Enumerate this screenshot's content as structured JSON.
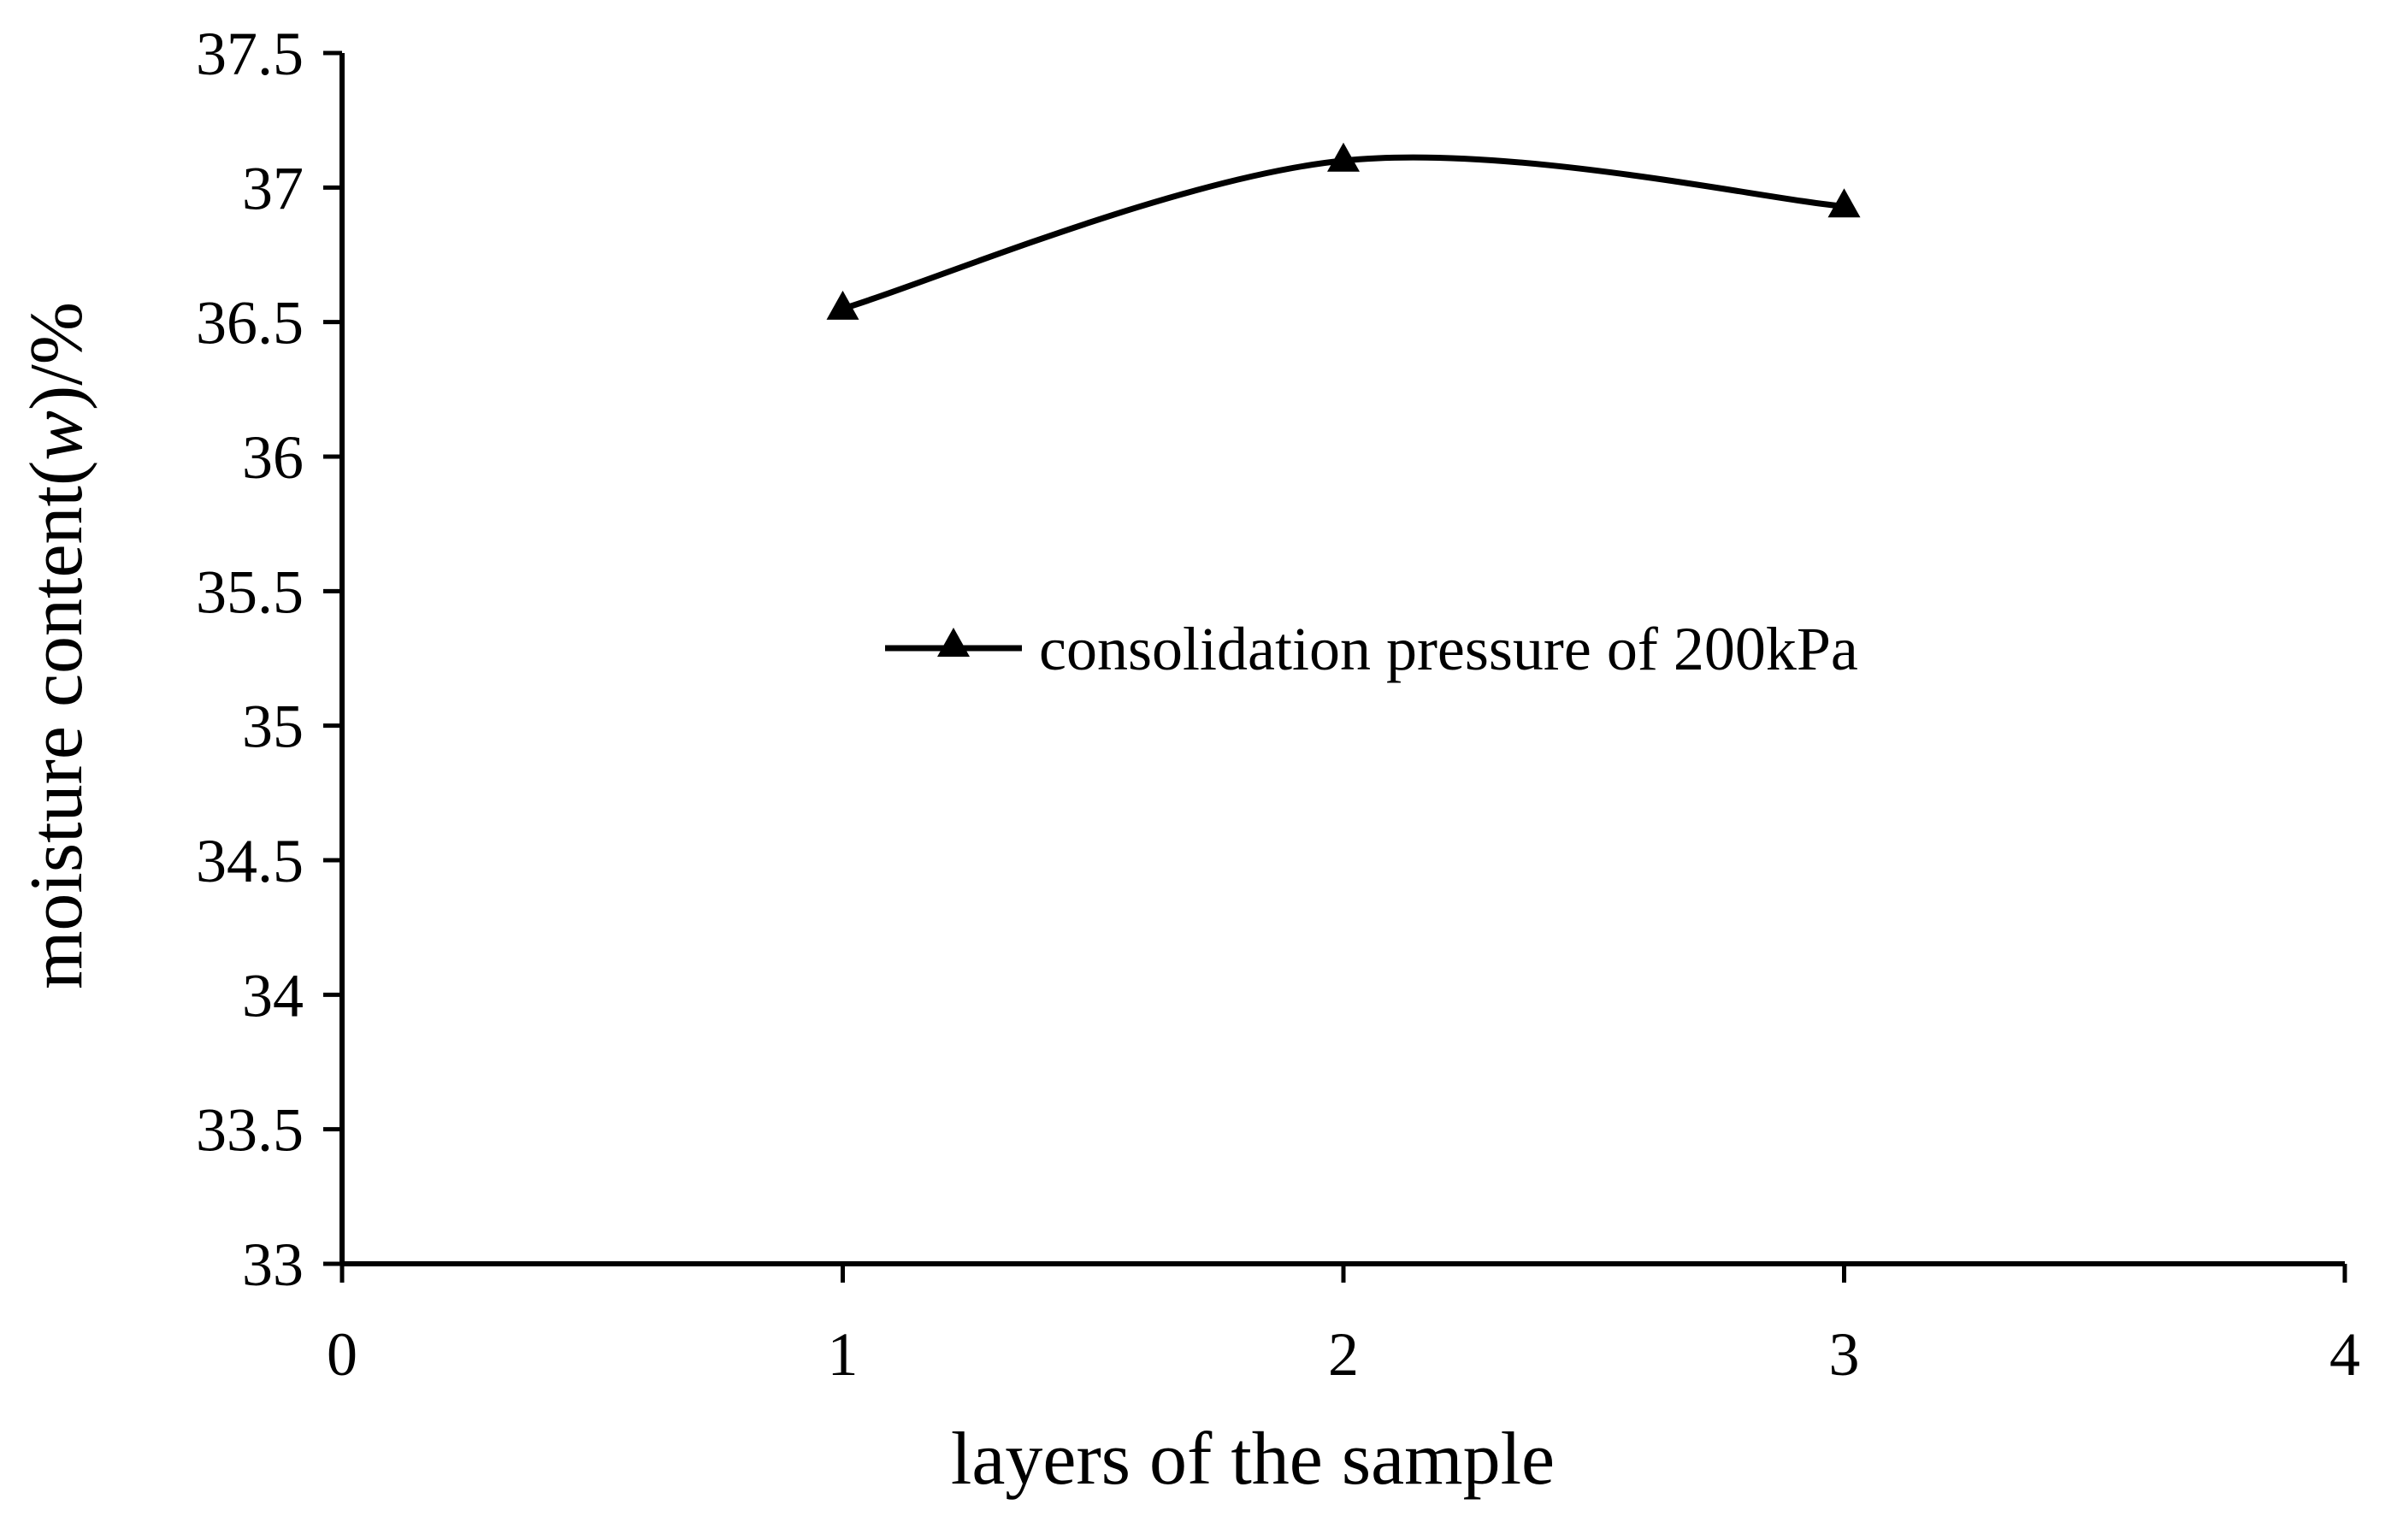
{
  "chart_data": {
    "type": "line",
    "title": "",
    "xlabel": "layers of the sample",
    "ylabel_main": "moisture content(",
    "ylabel_var": "w",
    "ylabel_tail": ")/%",
    "xlim": [
      0,
      4
    ],
    "ylim": [
      33,
      37.5
    ],
    "x_ticks": [
      0,
      1,
      2,
      3,
      4
    ],
    "x_tick_labels": [
      "0",
      "1",
      "2",
      "3",
      "4"
    ],
    "y_ticks": [
      33,
      33.5,
      34,
      34.5,
      35,
      35.5,
      36,
      36.5,
      37,
      37.5
    ],
    "y_tick_labels": [
      "33",
      "33.5",
      "34",
      "34.5",
      "35",
      "35.5",
      "36",
      "36.5",
      "37",
      "37.5"
    ],
    "grid": false,
    "legend_position": "center",
    "series": [
      {
        "name": "consolidation pressure of 200kPa",
        "marker": "triangle",
        "smooth": true,
        "color": "#000000",
        "x": [
          1,
          2,
          3
        ],
        "y": [
          36.55,
          37.1,
          36.93
        ]
      }
    ]
  }
}
